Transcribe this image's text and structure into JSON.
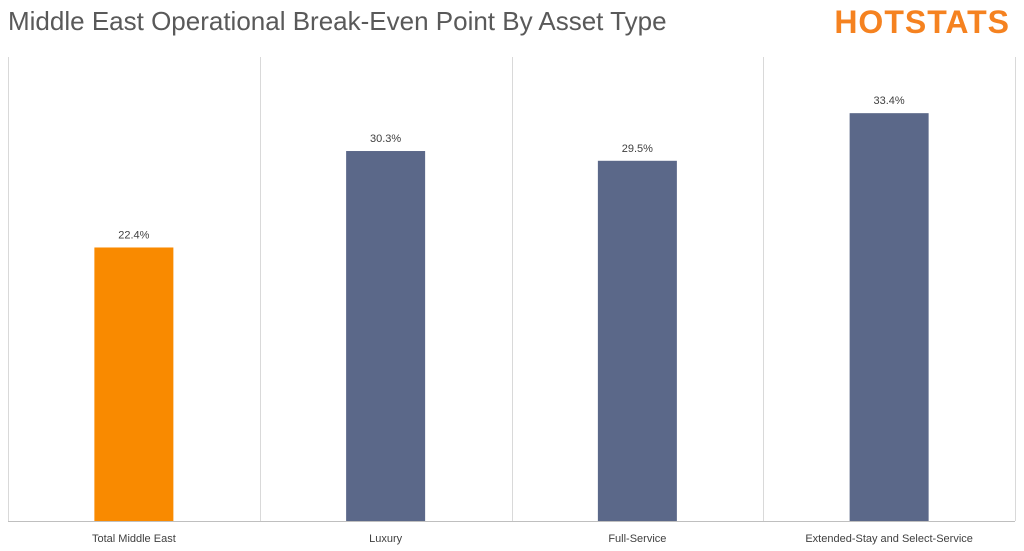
{
  "header": {
    "title": "Middle East Operational Break-Even Point By Asset Type",
    "logo_text": "HOTSTATS"
  },
  "colors": {
    "highlight": "#f98a00",
    "bar": "#5b6889",
    "gridline": "#d9d9d9",
    "axis": "#bfbfbf",
    "logo": "#f58220"
  },
  "chart_data": {
    "type": "bar",
    "title": "Middle East Operational Break-Even Point By Asset Type",
    "xlabel": "",
    "ylabel": "",
    "categories": [
      "Total Middle East",
      "Luxury",
      "Full-Service",
      "Extended-Stay and Select-Service"
    ],
    "values": [
      22.4,
      30.3,
      29.5,
      33.4
    ],
    "data_labels": [
      "22.4%",
      "30.3%",
      "29.5%",
      "33.4%"
    ],
    "highlight_index": 0,
    "ylim": [
      0,
      38
    ],
    "grid": "vertical category separators",
    "legend": "none"
  }
}
